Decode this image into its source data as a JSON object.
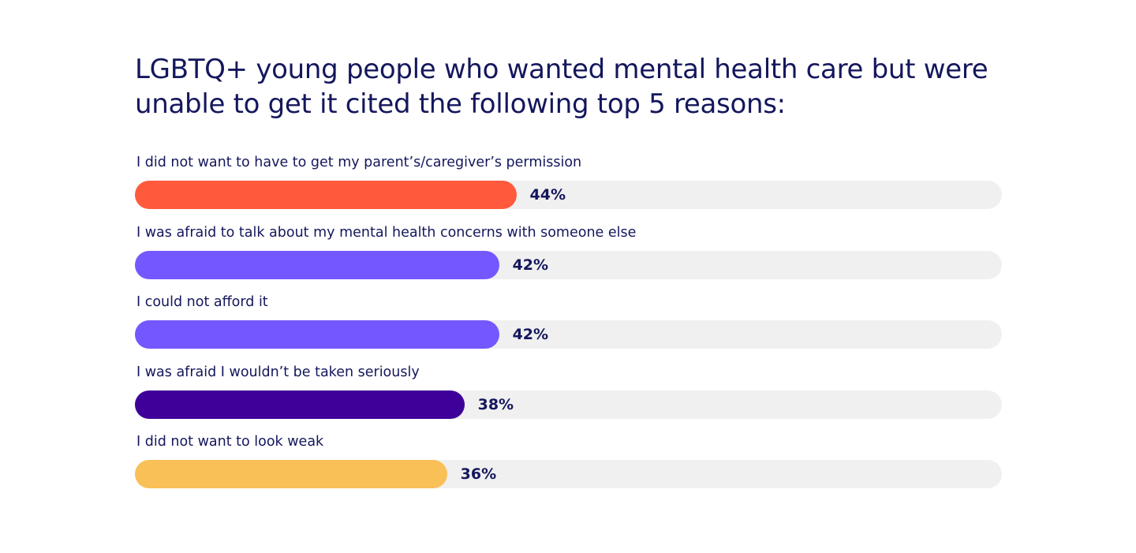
{
  "chart_data": {
    "type": "bar",
    "orientation": "horizontal",
    "title": "LGBTQ+ young people who wanted mental health care but were\nunable to get it cited the following top 5 reasons:",
    "categories": [
      "I did not want to have to get my parent’s/caregiver’s permission",
      "I was afraid to talk about my mental health concerns with someone else",
      "I could not afford it",
      "I was afraid I wouldn’t be taken seriously",
      "I did not want to look weak"
    ],
    "values": [
      44,
      42,
      42,
      38,
      36
    ],
    "value_labels": [
      "44%",
      "42%",
      "42%",
      "38%",
      "36%"
    ],
    "unit": "%",
    "xlim": [
      0,
      100
    ],
    "grid": false,
    "legend": "none",
    "colors": [
      "#ff5a3c",
      "#7557ff",
      "#7557ff",
      "#3f0099",
      "#f8c057"
    ],
    "track_color": "#f0f0f0",
    "text_color": "#14175c"
  }
}
